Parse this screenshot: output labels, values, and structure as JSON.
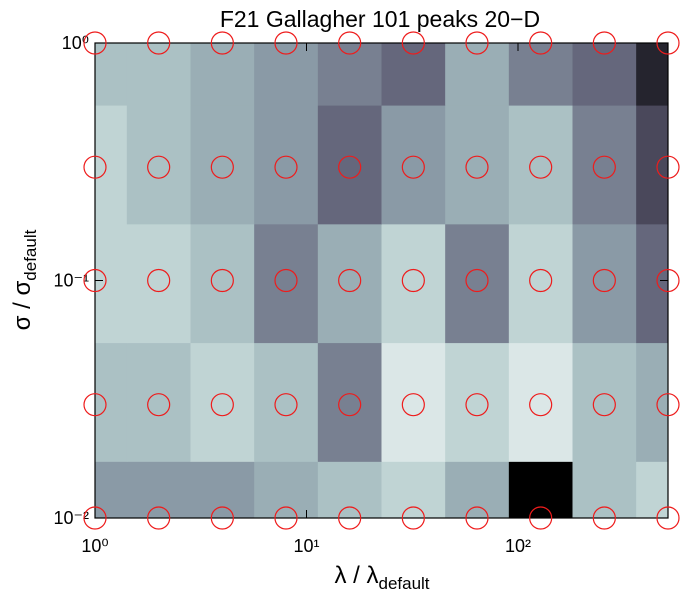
{
  "chart_data": {
    "type": "contour",
    "title": "F21 Gallagher 101 peaks 20−D",
    "xlabel": {
      "text": "λ / λ",
      "subscript": "default"
    },
    "ylabel": {
      "text": "σ / σ",
      "subscript": "default"
    },
    "xscale": "log",
    "yscale": "log",
    "xlim": [
      1,
      512
    ],
    "ylim": [
      0.01,
      1
    ],
    "xticks": [
      {
        "value": 1,
        "label": "10⁰"
      },
      {
        "value": 10,
        "label": "10¹"
      },
      {
        "value": 100,
        "label": "10²"
      }
    ],
    "yticks": [
      {
        "value": 0.01,
        "label": "10⁻²"
      },
      {
        "value": 0.1,
        "label": "10⁻¹"
      },
      {
        "value": 1,
        "label": "10⁰"
      }
    ],
    "x": [
      1,
      2,
      4,
      8,
      16,
      32,
      64,
      128,
      256,
      512
    ],
    "y": [
      0.01,
      0.03,
      0.1,
      0.3,
      1
    ],
    "z": [
      [
        5,
        5,
        5,
        4,
        3,
        2,
        4,
        10,
        3,
        2
      ],
      [
        3,
        3,
        2,
        3,
        6,
        1,
        2,
        1,
        3,
        4
      ],
      [
        2,
        2,
        3,
        6,
        4,
        2,
        6,
        2,
        5,
        7
      ],
      [
        2,
        3,
        4,
        5,
        7,
        5,
        4,
        3,
        6,
        8
      ],
      [
        3,
        3,
        4,
        5,
        6,
        7,
        4,
        6,
        7,
        9
      ]
    ],
    "zlim": [
      0,
      10
    ],
    "colormap": [
      "#f5f9f9",
      "#b3cbcb",
      "#8a9aa6",
      "#5c5a72",
      "#000000"
    ],
    "marker_color": "#ee1c1c"
  }
}
